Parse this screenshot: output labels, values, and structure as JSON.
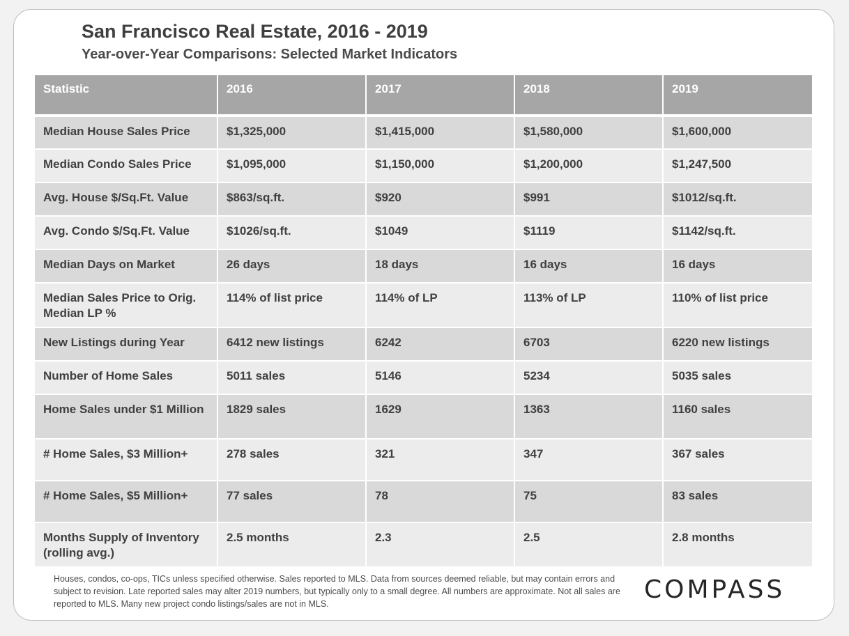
{
  "title": "San Francisco Real Estate, 2016 - 2019",
  "subtitle": "Year-over-Year  Comparisons:  Selected Market Indicators",
  "table": {
    "headers": [
      "Statistic",
      "2016",
      "2017",
      "2018",
      "2019"
    ],
    "rows": [
      [
        "Median House Sales Price",
        "$1,325,000",
        "$1,415,000",
        "$1,580,000",
        "$1,600,000"
      ],
      [
        "Median Condo Sales Price",
        "$1,095,000",
        "$1,150,000",
        "$1,200,000",
        "$1,247,500"
      ],
      [
        "Avg. House $/Sq.Ft. Value",
        "$863/sq.ft.",
        "$920",
        "$991",
        "$1012/sq.ft."
      ],
      [
        "Avg. Condo $/Sq.Ft. Value",
        "$1026/sq.ft.",
        "$1049",
        "$1119",
        "$1142/sq.ft."
      ],
      [
        "Median Days on Market",
        "26 days",
        "18 days",
        "16 days",
        "16 days"
      ],
      [
        "Median Sales Price to Orig. Median LP %",
        "114% of list price",
        "114% of LP",
        "113% of LP",
        "110% of list price"
      ],
      [
        "New Listings during Year",
        "6412 new listings",
        "6242",
        "6703",
        "6220 new listings"
      ],
      [
        "Number of Home Sales",
        "5011 sales",
        "5146",
        "5234",
        "5035 sales"
      ],
      [
        "Home Sales under $1 Million",
        "1829 sales",
        "1629",
        "1363",
        "1160 sales"
      ],
      [
        "# Home Sales, $3 Million+",
        "278 sales",
        "321",
        "347",
        "367 sales"
      ],
      [
        "# Home Sales, $5 Million+",
        "77 sales",
        "78",
        "75",
        "83 sales"
      ],
      [
        "Months Supply of Inventory (rolling avg.)",
        "2.5 months",
        "2.3",
        "2.5",
        "2.8 months"
      ]
    ]
  },
  "footnote": "Houses, condos, co-ops, TICs unless specified otherwise. Sales reported to MLS. Data from sources deemed reliable, but may contain errors and subject to revision. Late reported sales may alter 2019 numbers, but typically only to a small degree. All numbers are approximate. Not all sales are reported to MLS. Many new project condo listings/sales are not in MLS.",
  "brand": "COMPASS",
  "colors": {
    "header_bg": "#a6a6a6",
    "row_dark": "#d9d9d9",
    "row_light": "#ececec",
    "text": "#404040"
  }
}
